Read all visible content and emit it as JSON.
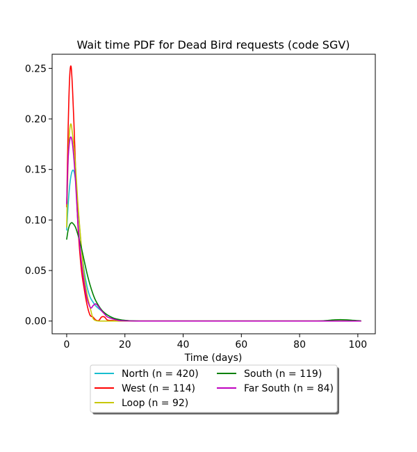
{
  "chart_data": {
    "type": "line",
    "title": "Wait time PDF for Dead Bird  requests (code SGV)",
    "xlabel": "Time (days)",
    "ylabel": "",
    "xlim": [
      -5,
      106
    ],
    "ylim": [
      -0.0126,
      0.264
    ],
    "xticks": [
      0,
      20,
      40,
      60,
      80,
      100
    ],
    "xtick_labels": [
      "0",
      "20",
      "40",
      "60",
      "80",
      "100"
    ],
    "yticks": [
      0.0,
      0.05,
      0.1,
      0.15,
      0.2,
      0.25
    ],
    "ytick_labels": [
      "0.00",
      "0.05",
      "0.10",
      "0.15",
      "0.20",
      "0.25"
    ],
    "grid": false,
    "legend_placement": "below",
    "series": [
      {
        "name": "North (n = 420)",
        "color": "#17becf",
        "x": [
          0,
          0.5,
          1,
          1.5,
          2,
          2.5,
          3,
          3.5,
          4,
          5,
          6,
          7,
          8,
          9,
          10,
          12,
          14,
          16,
          18,
          20,
          22,
          25,
          30,
          40,
          50,
          60,
          70,
          80,
          90,
          95,
          101
        ],
        "y": [
          0.09,
          0.115,
          0.133,
          0.144,
          0.149,
          0.148,
          0.14,
          0.125,
          0.108,
          0.075,
          0.05,
          0.034,
          0.024,
          0.019,
          0.015,
          0.01,
          0.006,
          0.003,
          0.0015,
          0.0006,
          0.0002,
          0.0,
          0.0,
          0.0,
          0.0,
          0.0,
          0.0,
          0.0,
          0.0,
          0.0,
          0.0
        ]
      },
      {
        "name": "West (n = 114)",
        "color": "#ff0000",
        "x": [
          0,
          0.5,
          1,
          1.5,
          2,
          2.5,
          3,
          3.5,
          4,
          5,
          6,
          7,
          8,
          9,
          10,
          11,
          12,
          13,
          14,
          16,
          18,
          20,
          25,
          30,
          40,
          50,
          60,
          70,
          80,
          90,
          95,
          101
        ],
        "y": [
          0.113,
          0.19,
          0.24,
          0.252,
          0.23,
          0.195,
          0.155,
          0.118,
          0.088,
          0.052,
          0.032,
          0.016,
          0.006,
          0.004,
          0.001,
          0.0005,
          0.004,
          0.004,
          0.001,
          0.0005,
          0.0,
          0.0,
          0.0,
          0.0,
          0.0,
          0.0,
          0.0,
          0.0,
          0.0,
          0.0,
          0.0,
          0.0
        ]
      },
      {
        "name": "Loop (n = 92)",
        "color": "#c7c700",
        "x": [
          0,
          0.5,
          1,
          1.5,
          2,
          2.5,
          3,
          3.5,
          4,
          5,
          6,
          7,
          8,
          9,
          10,
          11,
          12,
          14,
          16,
          20,
          30,
          40,
          50,
          60,
          70,
          80,
          90,
          95,
          101
        ],
        "y": [
          0.093,
          0.16,
          0.188,
          0.195,
          0.185,
          0.172,
          0.155,
          0.132,
          0.11,
          0.075,
          0.045,
          0.026,
          0.014,
          0.003,
          0.0005,
          0.0,
          0.0,
          0.0,
          0.0,
          0.0,
          0.0,
          0.0,
          0.0,
          0.0,
          0.0,
          0.0,
          0.0,
          0.0,
          0.0
        ]
      },
      {
        "name": "South (n = 119)",
        "color": "#008000",
        "x": [
          0,
          0.5,
          1,
          1.5,
          2,
          3,
          4,
          5,
          6,
          7,
          8,
          9,
          10,
          12,
          14,
          16,
          18,
          20,
          22,
          25,
          30,
          40,
          50,
          60,
          70,
          80,
          86,
          88,
          90,
          92,
          94,
          96,
          98,
          100,
          101
        ],
        "y": [
          0.081,
          0.09,
          0.095,
          0.097,
          0.097,
          0.093,
          0.084,
          0.073,
          0.06,
          0.047,
          0.036,
          0.027,
          0.02,
          0.011,
          0.006,
          0.003,
          0.0015,
          0.0007,
          0.0003,
          0.0,
          0.0,
          0.0,
          0.0,
          0.0,
          0.0,
          0.0,
          0.0,
          0.0002,
          0.0007,
          0.0012,
          0.0014,
          0.0012,
          0.0008,
          0.0004,
          0.0003
        ]
      },
      {
        "name": "Far South (n = 84)",
        "color": "#bf00bf",
        "x": [
          0,
          0.5,
          1,
          1.5,
          2,
          2.5,
          3,
          3.5,
          4,
          5,
          6,
          7,
          8,
          8.5,
          9,
          10,
          11,
          12,
          13,
          14,
          16,
          18,
          20,
          25,
          30,
          40,
          50,
          60,
          70,
          80,
          90,
          95,
          101
        ],
        "y": [
          0.116,
          0.16,
          0.178,
          0.182,
          0.175,
          0.16,
          0.14,
          0.115,
          0.092,
          0.06,
          0.038,
          0.022,
          0.014,
          0.013,
          0.015,
          0.017,
          0.014,
          0.01,
          0.007,
          0.004,
          0.002,
          0.0005,
          0.0002,
          0.0,
          0.0,
          0.0,
          0.0,
          0.0,
          0.0,
          0.0,
          0.0,
          0.0,
          0.0
        ]
      }
    ]
  }
}
